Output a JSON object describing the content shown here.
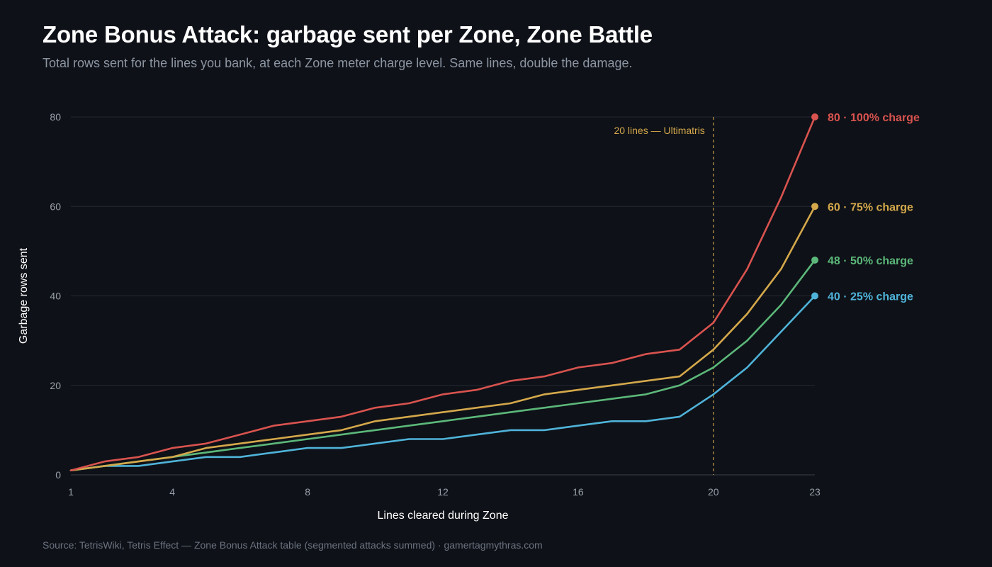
{
  "header": {
    "title": "Zone Bonus Attack: garbage sent per Zone, Zone Battle",
    "subtitle": "Total rows sent for the lines you bank, at each Zone meter charge level. Same lines, double the damage."
  },
  "footer": {
    "source": "Source: TetrisWiki, Tetris Effect — Zone Bonus Attack table (segmented attacks summed) · gamertagmythras.com"
  },
  "chart_data": {
    "type": "line",
    "title": "Zone Bonus Attack: garbage sent per Zone, Zone Battle",
    "subtitle": "Total rows sent for the lines you bank, at each Zone meter charge level. Same lines, double the damage.",
    "xlabel": "Lines cleared during Zone",
    "ylabel": "Garbage rows sent",
    "xlim": [
      1,
      23
    ],
    "ylim": [
      0,
      80
    ],
    "x_ticks": [
      1,
      4,
      8,
      12,
      16,
      20,
      23
    ],
    "y_ticks": [
      0,
      20,
      40,
      60,
      80
    ],
    "grid": "horizontal",
    "x": [
      1,
      2,
      3,
      4,
      5,
      6,
      7,
      8,
      9,
      10,
      11,
      12,
      13,
      14,
      15,
      16,
      17,
      18,
      19,
      20,
      21,
      22,
      23
    ],
    "series": [
      {
        "name": "25% charge",
        "color": "#4fb3d9",
        "end_label": "40 · 25% charge",
        "values": [
          1,
          2,
          2,
          3,
          4,
          4,
          5,
          6,
          6,
          7,
          8,
          8,
          9,
          10,
          10,
          11,
          12,
          12,
          13,
          18,
          24,
          32,
          40
        ]
      },
      {
        "name": "50% charge",
        "color": "#5cb87a",
        "end_label": "48 · 50% charge",
        "values": [
          1,
          2,
          3,
          4,
          5,
          6,
          7,
          8,
          9,
          10,
          11,
          12,
          13,
          14,
          15,
          16,
          17,
          18,
          20,
          24,
          30,
          38,
          48
        ]
      },
      {
        "name": "75% charge",
        "color": "#d4a84b",
        "end_label": "60 · 75% charge",
        "values": [
          1,
          2,
          3,
          4,
          6,
          7,
          8,
          9,
          10,
          12,
          13,
          14,
          15,
          16,
          18,
          19,
          20,
          21,
          22,
          28,
          36,
          46,
          60
        ]
      },
      {
        "name": "100% charge",
        "color": "#d9534f",
        "end_label": "80 · 100% charge",
        "values": [
          1,
          3,
          4,
          6,
          7,
          9,
          11,
          12,
          13,
          15,
          16,
          18,
          19,
          21,
          22,
          24,
          25,
          27,
          28,
          34,
          46,
          62,
          80
        ]
      }
    ],
    "annotations": [
      {
        "type": "vline",
        "x": 20,
        "text": "20 lines — Ultimatris",
        "color": "#d4a84b"
      }
    ],
    "legend": "direct end labels at right"
  }
}
